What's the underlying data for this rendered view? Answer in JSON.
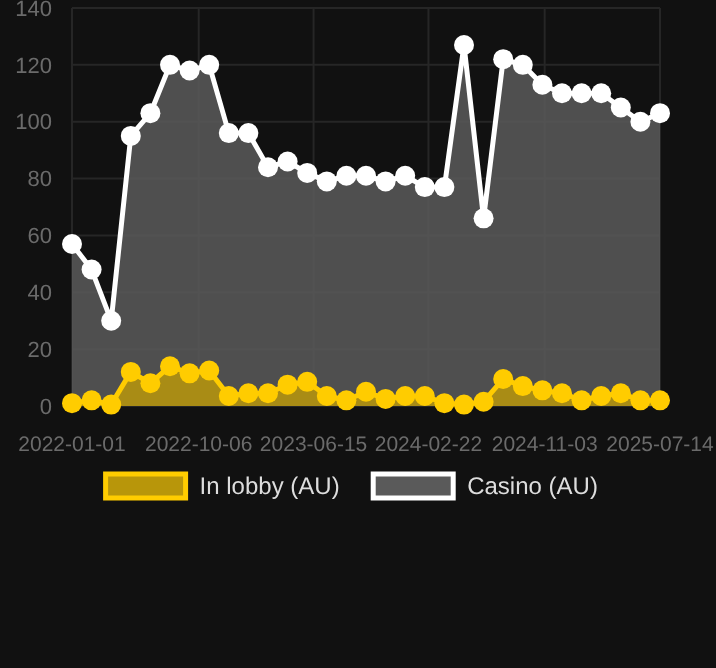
{
  "chart_data": {
    "type": "area",
    "x": [
      "2022-01-01",
      "2022-02-13",
      "2022-03-28",
      "2022-05-10",
      "2022-06-22",
      "2022-08-04",
      "2022-09-16",
      "2022-10-29",
      "2022-12-11",
      "2023-01-23",
      "2023-03-07",
      "2023-04-19",
      "2023-06-01",
      "2023-07-14",
      "2023-08-26",
      "2023-10-08",
      "2023-11-20",
      "2024-01-02",
      "2024-02-14",
      "2024-03-28",
      "2024-05-10",
      "2024-06-22",
      "2024-08-04",
      "2024-09-16",
      "2024-10-29",
      "2024-12-11",
      "2025-01-23",
      "2025-03-07",
      "2025-04-19",
      "2025-06-01",
      "2025-07-14"
    ],
    "series": [
      {
        "name": "In lobby (AU)",
        "color": "#ffcc00",
        "values": [
          1,
          2,
          0.5,
          12,
          8,
          14,
          11.5,
          12.5,
          3.5,
          4.5,
          4.5,
          7.5,
          8.5,
          3.5,
          2,
          5,
          2.5,
          3.5,
          3.5,
          1,
          0.5,
          1.5,
          9.5,
          7,
          5.5,
          4.5,
          2,
          3.5,
          4.5,
          2,
          2
        ]
      },
      {
        "name": "Casino (AU)",
        "color": "#ffffff",
        "values": [
          57,
          48,
          30,
          95,
          103,
          120,
          118,
          120,
          96,
          96,
          84,
          86,
          82,
          79,
          81,
          81,
          79,
          81,
          77,
          77,
          127,
          66,
          122,
          120,
          113,
          110,
          110,
          110,
          105,
          100,
          103
        ]
      }
    ],
    "xlim": [
      "2022-01-01",
      "2025-07-14"
    ],
    "xticks": [
      "2022-01-01",
      "2022-10-06",
      "2023-06-15",
      "2024-02-22",
      "2024-11-03",
      "2025-07-14"
    ],
    "ylim": [
      0,
      140
    ],
    "yticks": [
      0,
      20,
      40,
      60,
      80,
      100,
      120,
      140
    ],
    "grid": true,
    "legend": "bottom",
    "marker": "circle"
  }
}
